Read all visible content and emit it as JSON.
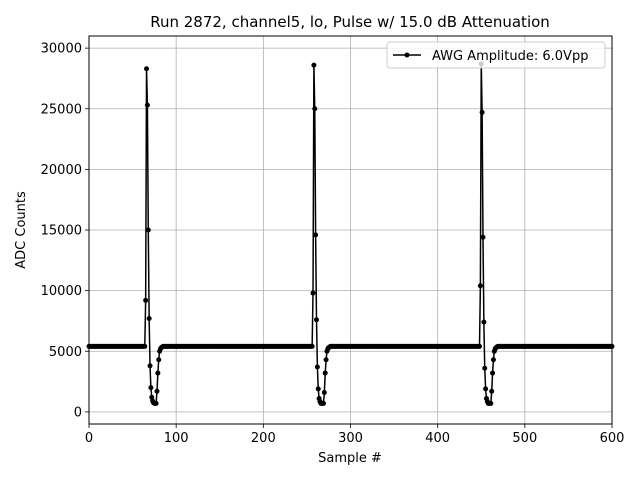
{
  "chart_data": {
    "type": "line",
    "title": "Run 2872, channel5, lo, Pulse w/ 15.0 dB Attenuation",
    "xlabel": "Sample #",
    "ylabel": "ADC Counts",
    "xlim": [
      0,
      600
    ],
    "ylim": [
      -1000,
      31000
    ],
    "xticks": [
      0,
      100,
      200,
      300,
      400,
      500,
      600
    ],
    "yticks": [
      0,
      5000,
      10000,
      15000,
      20000,
      25000,
      30000
    ],
    "grid": true,
    "legend_position": "top-right",
    "series": [
      {
        "name": "AWG Amplitude: 6.0Vpp",
        "color": "#000000",
        "marker": "circle",
        "baseline": 5400,
        "pulses": [
          {
            "start": 65,
            "values": [
              9200,
              28300,
              25300,
              15000,
              7700,
              3800,
              2000,
              1200,
              900,
              750,
              700,
              700,
              700,
              1700,
              3200,
              4300,
              5000,
              5200,
              5300,
              5350
            ]
          },
          {
            "start": 257,
            "values": [
              9800,
              28600,
              25000,
              14600,
              7600,
              3700,
              1900,
              1100,
              850,
              700,
              700,
              700,
              700,
              1600,
              3200,
              4300,
              5000,
              5200,
              5300,
              5350
            ]
          },
          {
            "start": 449,
            "values": [
              10400,
              28700,
              24700,
              14400,
              7400,
              3600,
              1900,
              1100,
              850,
              700,
              700,
              700,
              700,
              1700,
              3200,
              4300,
              5000,
              5200,
              5300,
              5350
            ]
          }
        ]
      }
    ]
  }
}
